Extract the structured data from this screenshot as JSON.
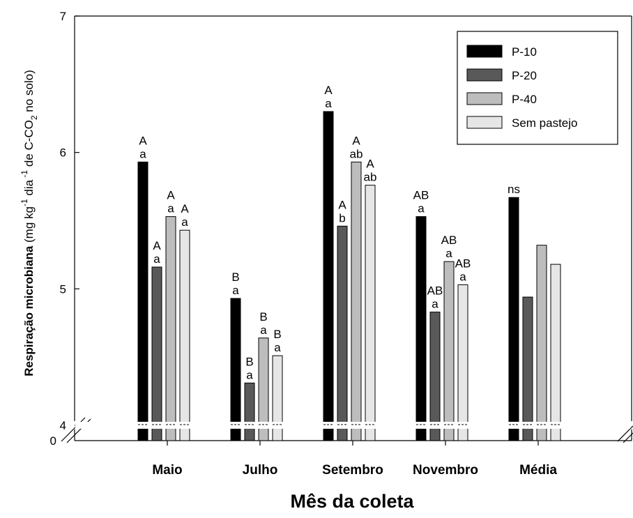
{
  "chart_data": {
    "type": "bar",
    "categories": [
      "Maio",
      "Julho",
      "Setembro",
      "Novembro",
      "Média"
    ],
    "series": [
      {
        "name": "P-10",
        "values": [
          5.93,
          4.93,
          6.3,
          5.53,
          5.67
        ],
        "color": "#000000",
        "letters": [
          [
            "A",
            "a"
          ],
          [
            "B",
            "a"
          ],
          [
            "A",
            "a"
          ],
          [
            "AB",
            "a"
          ],
          [
            "ns"
          ]
        ]
      },
      {
        "name": "P-20",
        "values": [
          5.16,
          4.31,
          5.46,
          4.83,
          4.94
        ],
        "color": "#595959",
        "letters": [
          [
            "A",
            "a"
          ],
          [
            "B",
            "a"
          ],
          [
            "A",
            "b"
          ],
          [
            "AB",
            "a"
          ],
          []
        ]
      },
      {
        "name": "P-40",
        "values": [
          5.53,
          4.64,
          5.93,
          5.2,
          5.32
        ],
        "color": "#bdbdbd",
        "letters": [
          [
            "A",
            "a"
          ],
          [
            "B",
            "a"
          ],
          [
            "A",
            "ab"
          ],
          [
            "AB",
            "a"
          ],
          []
        ]
      },
      {
        "name": "Sem pastejo",
        "values": [
          5.43,
          4.51,
          5.76,
          5.03,
          5.18
        ],
        "color": "#e6e6e6",
        "letters": [
          [
            "A",
            "a"
          ],
          [
            "B",
            "a"
          ],
          [
            "A",
            "ab"
          ],
          [
            "AB",
            "a"
          ],
          []
        ]
      }
    ],
    "draw_order": [
      "P-10",
      "P-40",
      "P-20",
      "Sem pastejo"
    ],
    "yticks": [
      "4",
      "5",
      "6",
      "7"
    ],
    "ylim": [
      4,
      7
    ],
    "axis_break": {
      "lower_label": "0",
      "upper_label": "4"
    },
    "xlabel": "Mês da coleta",
    "ylabel": {
      "bold": "Respiração microbiana",
      "open": " (mg kg",
      "sup1": "-1",
      "mid": " dia",
      "sup2": " -1",
      "mid2": " de C-CO",
      "sub": "2",
      "close": " no solo)"
    },
    "legend_position": "top-right",
    "grid": false
  }
}
